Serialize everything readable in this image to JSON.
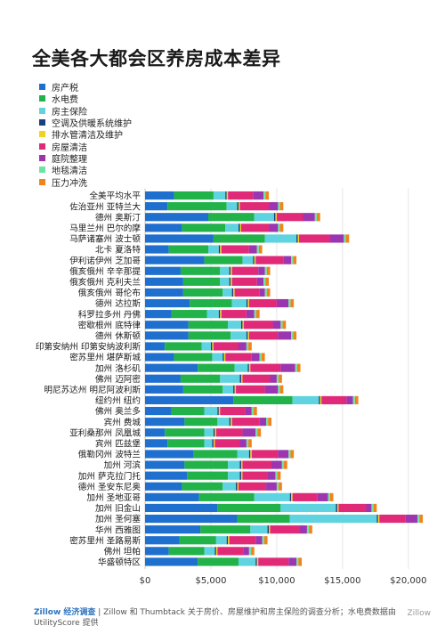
{
  "header": {
    "title": "全美各大都会区养房成本差异"
  },
  "footer": {
    "brand": "Zillow 经济调查",
    "text": " | Zillow 和 Thumbtack 关于房价、房屋维护和房主保险的调查分析；水电费数据由 UtilityScore 提供",
    "watermark": "Zillow"
  },
  "chart_data": {
    "type": "bar",
    "orientation": "horizontal",
    "stacked": true,
    "xlim": [
      0,
      21500
    ],
    "x_ticks": [
      "$0",
      "$5,000",
      "$10,000",
      "$15,000",
      "$20,000"
    ],
    "x_tick_values": [
      0,
      5000,
      10000,
      15000,
      20000
    ],
    "categories": [
      "全美平均水平",
      "佐治亚州 亚特兰大",
      "德州 奥斯汀",
      "马里兰州 巴尔的摩",
      "马萨诸塞州 波士顿",
      "北卡 夏洛特",
      "伊利诺伊州 芝加哥",
      "俄亥俄州 辛辛那提",
      "俄亥俄州 克利夫兰",
      "俄亥俄州 哥伦布",
      "德州 达拉斯",
      "科罗拉多州 丹佛",
      "密歇根州 底特律",
      "德州 休斯顿",
      "印第安纳州 印第安纳波利斯",
      "密苏里州 堪萨斯城",
      "加州 洛杉矶",
      "佛州 迈阿密",
      "明尼苏达州 明尼阿波利斯",
      "纽约州 纽约",
      "佛州 奥兰多",
      "宾州 费城",
      "亚利桑那州 凤凰城",
      "宾州 匹兹堡",
      "俄勒冈州 波特兰",
      "加州 河滨",
      "加州 萨克拉门托",
      "德州 圣安东尼奥",
      "加州 圣地亚哥",
      "加州 旧金山",
      "加州 圣何塞",
      "华州 西雅图",
      "密苏里州 圣路易斯",
      "佛州 坦帕",
      "华盛顿特区"
    ],
    "series": [
      {
        "name": "房产税",
        "color": "#1f6fcf",
        "values": [
          2200,
          1700,
          4800,
          2800,
          5200,
          1800,
          4500,
          2700,
          2900,
          2900,
          3400,
          2000,
          3300,
          3300,
          1500,
          2200,
          4000,
          2700,
          2900,
          6700,
          2000,
          3000,
          1500,
          1700,
          3700,
          3000,
          3200,
          2800,
          4100,
          5500,
          7000,
          4200,
          2600,
          1800,
          4000
        ]
      },
      {
        "name": "水电费",
        "color": "#22b24a",
        "values": [
          3000,
          4500,
          3500,
          3300,
          3900,
          3000,
          2900,
          3000,
          2800,
          3000,
          3200,
          2700,
          3000,
          3200,
          2800,
          2900,
          2800,
          3000,
          3000,
          4500,
          2500,
          2500,
          3000,
          2800,
          3300,
          3300,
          3100,
          3100,
          4200,
          4800,
          4000,
          3800,
          2800,
          2700,
          3100
        ]
      },
      {
        "name": "房主保险",
        "color": "#5fd3e0",
        "values": [
          900,
          800,
          1500,
          1000,
          2400,
          800,
          800,
          700,
          700,
          700,
          1100,
          900,
          1000,
          1200,
          700,
          800,
          1000,
          1500,
          800,
          2000,
          1000,
          900,
          700,
          600,
          900,
          900,
          900,
          1000,
          2700,
          4200,
          6600,
          1300,
          800,
          800,
          1300
        ]
      },
      {
        "name": "空调及供暖系统维护",
        "color": "#1c3f7d",
        "values": [
          100,
          100,
          100,
          100,
          100,
          100,
          100,
          100,
          100,
          100,
          100,
          100,
          100,
          100,
          100,
          100,
          100,
          100,
          100,
          100,
          100,
          100,
          100,
          100,
          100,
          100,
          100,
          100,
          100,
          100,
          100,
          100,
          100,
          100,
          100
        ]
      },
      {
        "name": "排水管清洁及维护",
        "color": "#f3d21d",
        "values": [
          100,
          100,
          100,
          100,
          100,
          100,
          100,
          100,
          100,
          100,
          100,
          100,
          100,
          100,
          100,
          100,
          100,
          100,
          100,
          100,
          100,
          100,
          100,
          100,
          100,
          100,
          100,
          100,
          100,
          100,
          100,
          100,
          100,
          100,
          100
        ]
      },
      {
        "name": "房屋清洁",
        "color": "#e02a78",
        "values": [
          1900,
          2200,
          2000,
          2100,
          2300,
          2100,
          2100,
          2000,
          1900,
          1900,
          2100,
          1900,
          2200,
          2200,
          1900,
          2000,
          2300,
          2100,
          2200,
          1900,
          1900,
          2100,
          2000,
          1900,
          2000,
          2200,
          1900,
          2100,
          1900,
          2100,
          2000,
          2200,
          2000,
          2000,
          2300
        ]
      },
      {
        "name": "庭院整理",
        "color": "#9b35b0",
        "values": [
          800,
          700,
          900,
          700,
          1100,
          600,
          600,
          500,
          500,
          400,
          900,
          600,
          600,
          1000,
          600,
          600,
          1100,
          500,
          1000,
          500,
          500,
          500,
          1000,
          500,
          800,
          800,
          600,
          800,
          800,
          400,
          900,
          600,
          500,
          400,
          600
        ]
      },
      {
        "name": "地毯清洁",
        "color": "#6fe3a5",
        "values": [
          150,
          150,
          150,
          150,
          150,
          150,
          150,
          150,
          150,
          150,
          150,
          150,
          150,
          150,
          150,
          150,
          150,
          150,
          150,
          150,
          150,
          150,
          150,
          150,
          150,
          150,
          150,
          150,
          150,
          150,
          150,
          150,
          150,
          150,
          150
        ]
      },
      {
        "name": "压力冲洗",
        "color": "#f0841a",
        "values": [
          250,
          250,
          250,
          250,
          250,
          250,
          250,
          250,
          250,
          250,
          250,
          250,
          250,
          250,
          250,
          250,
          250,
          250,
          250,
          250,
          250,
          250,
          250,
          250,
          250,
          250,
          250,
          250,
          250,
          250,
          250,
          250,
          250,
          250,
          250
        ]
      }
    ]
  }
}
